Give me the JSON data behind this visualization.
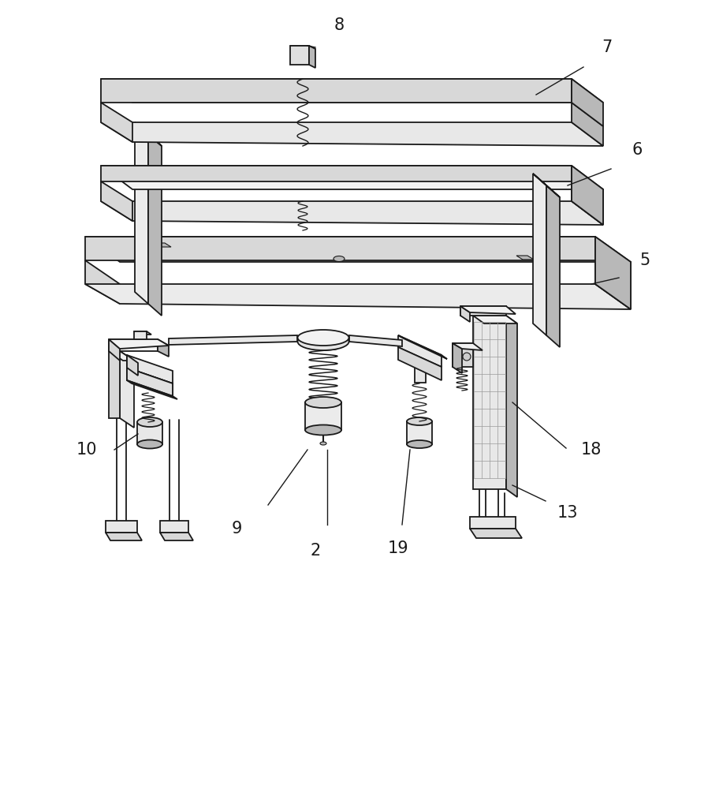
{
  "background_color": "#ffffff",
  "line_color": "#1a1a1a",
  "light_gray": "#f2f2f2",
  "mid_gray": "#d8d8d8",
  "dark_gray": "#b8b8b8",
  "figsize": [
    8.98,
    10.0
  ],
  "dpi": 100,
  "label_fontsize": 15
}
